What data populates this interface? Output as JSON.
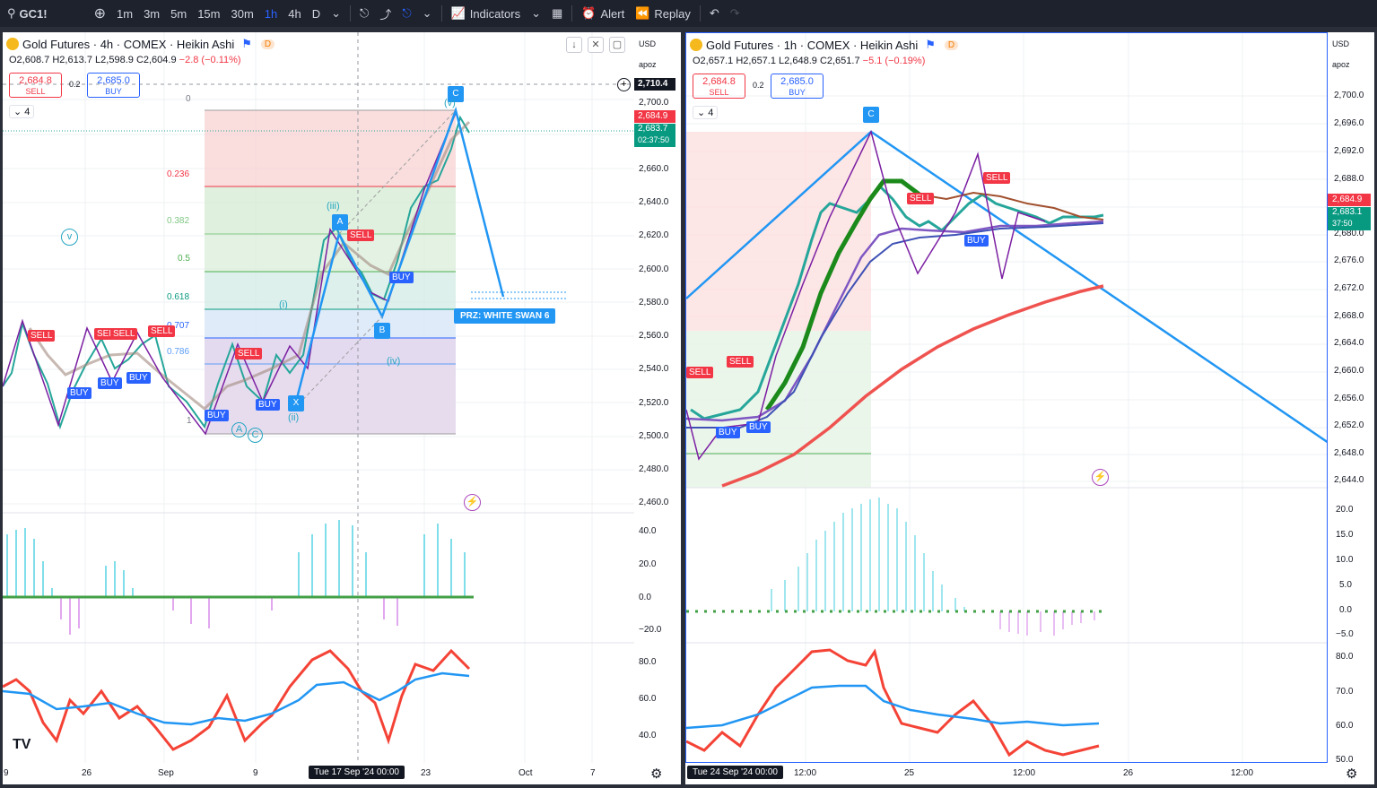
{
  "toolbar": {
    "symbol": "GC1!",
    "intervals": [
      "1m",
      "3m",
      "5m",
      "15m",
      "30m",
      "1h",
      "4h",
      "D"
    ],
    "active_interval": "1h",
    "indicators_label": "Indicators",
    "alert_label": "Alert",
    "replay_label": "Replay"
  },
  "left": {
    "title": "Gold Futures · 4h · COMEX · Heikin Ashi",
    "badge": "D",
    "ohlc": {
      "o": "O2,608.7",
      "h": "H2,613.7",
      "l": "L2,598.9",
      "c": "C2,604.9",
      "chg": "−2.8 (−0.11%)"
    },
    "sell_price": "2,684.8",
    "sell_label": "SELL",
    "spread": "0.2",
    "buy_price": "2,685.0",
    "buy_label": "BUY",
    "layers": "4",
    "currency": "USD",
    "scale_label": "apoz",
    "price_ticks": [
      "2,700.0",
      "2,680.0",
      "2,660.0",
      "2,640.0",
      "2,620.0",
      "2,600.0",
      "2,580.0",
      "2,560.0",
      "2,540.0",
      "2,520.0",
      "2,500.0",
      "2,480.0",
      "2,460.0"
    ],
    "osc_ticks": [
      "40.0",
      "20.0",
      "0.0",
      "−20.0"
    ],
    "rsi_ticks": [
      "80.0",
      "60.0",
      "40.0"
    ],
    "crosshair_price": "2,710.4",
    "last_price": "2,684.9",
    "last_price2": "2,683.7",
    "countdown": "02:37:50",
    "date_ticks": [
      "9",
      "26",
      "Sep",
      "9",
      "23",
      "Oct",
      "7"
    ],
    "crosshair_date": "Tue 17 Sep '24   00:00",
    "fib_levels": [
      "0",
      "0.236",
      "0.382",
      "0.5",
      "0.618",
      "0.707",
      "0.786",
      "1"
    ],
    "prz_label": "PRZ: WHITE SWAN 6",
    "pattern_points": [
      "X",
      "A",
      "B",
      "C"
    ],
    "wave_labels": [
      "(iii)",
      "(i)",
      "(ii)",
      "(iv)",
      "(v)",
      "A",
      "C",
      "v"
    ],
    "signal_sell": "SELL",
    "signal_buy": "BUY"
  },
  "right": {
    "title": "Gold Futures · 1h · COMEX · Heikin Ashi",
    "badge": "D",
    "ohlc": {
      "o": "O2,657.1",
      "h": "H2,657.1",
      "l": "L2,648.9",
      "c": "C2,651.7",
      "chg": "−5.1 (−0.19%)"
    },
    "sell_price": "2,684.8",
    "sell_label": "SELL",
    "spread": "0.2",
    "buy_price": "2,685.0",
    "buy_label": "BUY",
    "layers": "4",
    "currency": "USD",
    "scale_label": "apoz",
    "price_ticks": [
      "2,700.0",
      "2,696.0",
      "2,692.0",
      "2,688.0",
      "2,684.0",
      "2,680.0",
      "2,676.0",
      "2,672.0",
      "2,668.0",
      "2,664.0",
      "2,660.0",
      "2,656.0",
      "2,652.0",
      "2,648.0",
      "2,644.0"
    ],
    "osc_ticks": [
      "20.0",
      "15.0",
      "10.0",
      "5.0",
      "0.0",
      "−5.0"
    ],
    "rsi_ticks": [
      "80.0",
      "70.0",
      "60.0",
      "50.0"
    ],
    "last_price": "2,684.9",
    "last_price2": "2,683.1",
    "countdown": "37:50",
    "date_ticks": [
      "12:00",
      "25",
      "12:00",
      "26",
      "12:00"
    ],
    "crosshair_date": "Tue 24 Sep '24   00:00",
    "pattern_points": [
      "C"
    ],
    "signal_sell": "SELL",
    "signal_buy": "BUY"
  },
  "colors": {
    "up": "#26a69a",
    "down": "#ef5350",
    "accent": "#2962ff",
    "pattern": "#2196f3",
    "sell": "#f23645"
  }
}
